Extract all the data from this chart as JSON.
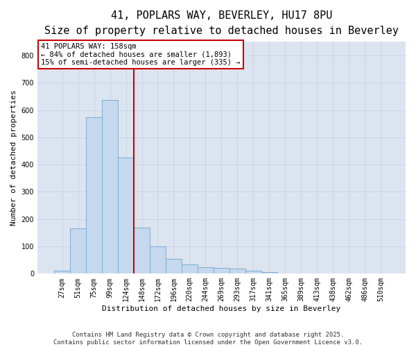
{
  "title_line1": "41, POPLARS WAY, BEVERLEY, HU17 8PU",
  "title_line2": "Size of property relative to detached houses in Beverley",
  "xlabel": "Distribution of detached houses by size in Beverley",
  "ylabel": "Number of detached properties",
  "bar_color_normal": "#c5d8ed",
  "bar_edge_color": "#7aadd4",
  "highlight_bar_color": "#c5d8ed",
  "highlight_edge_color": "#cc0000",
  "categories": [
    "27sqm",
    "51sqm",
    "75sqm",
    "99sqm",
    "124sqm",
    "148sqm",
    "172sqm",
    "196sqm",
    "220sqm",
    "244sqm",
    "269sqm",
    "293sqm",
    "317sqm",
    "341sqm",
    "365sqm",
    "389sqm",
    "413sqm",
    "438sqm",
    "462sqm",
    "486sqm",
    "510sqm"
  ],
  "values": [
    10,
    167,
    574,
    636,
    427,
    170,
    100,
    55,
    35,
    25,
    20,
    18,
    12,
    5,
    2,
    0,
    0,
    0,
    0,
    0,
    2
  ],
  "red_line_index": 5,
  "ylim": [
    0,
    850
  ],
  "yticks": [
    0,
    100,
    200,
    300,
    400,
    500,
    600,
    700,
    800
  ],
  "annotation_title": "41 POPLARS WAY: 158sqm",
  "annotation_line2": "← 84% of detached houses are smaller (1,893)",
  "annotation_line3": "15% of semi-detached houses are larger (335) →",
  "annotation_box_color": "#ffffff",
  "annotation_border_color": "#cc0000",
  "grid_color": "#c8d4e8",
  "background_color": "#dce4f0",
  "footer_line1": "Contains HM Land Registry data © Crown copyright and database right 2025.",
  "footer_line2": "Contains public sector information licensed under the Open Government Licence v3.0.",
  "title_fontsize": 11,
  "subtitle_fontsize": 9,
  "axis_label_fontsize": 8,
  "tick_fontsize": 7,
  "annotation_fontsize": 7.5
}
